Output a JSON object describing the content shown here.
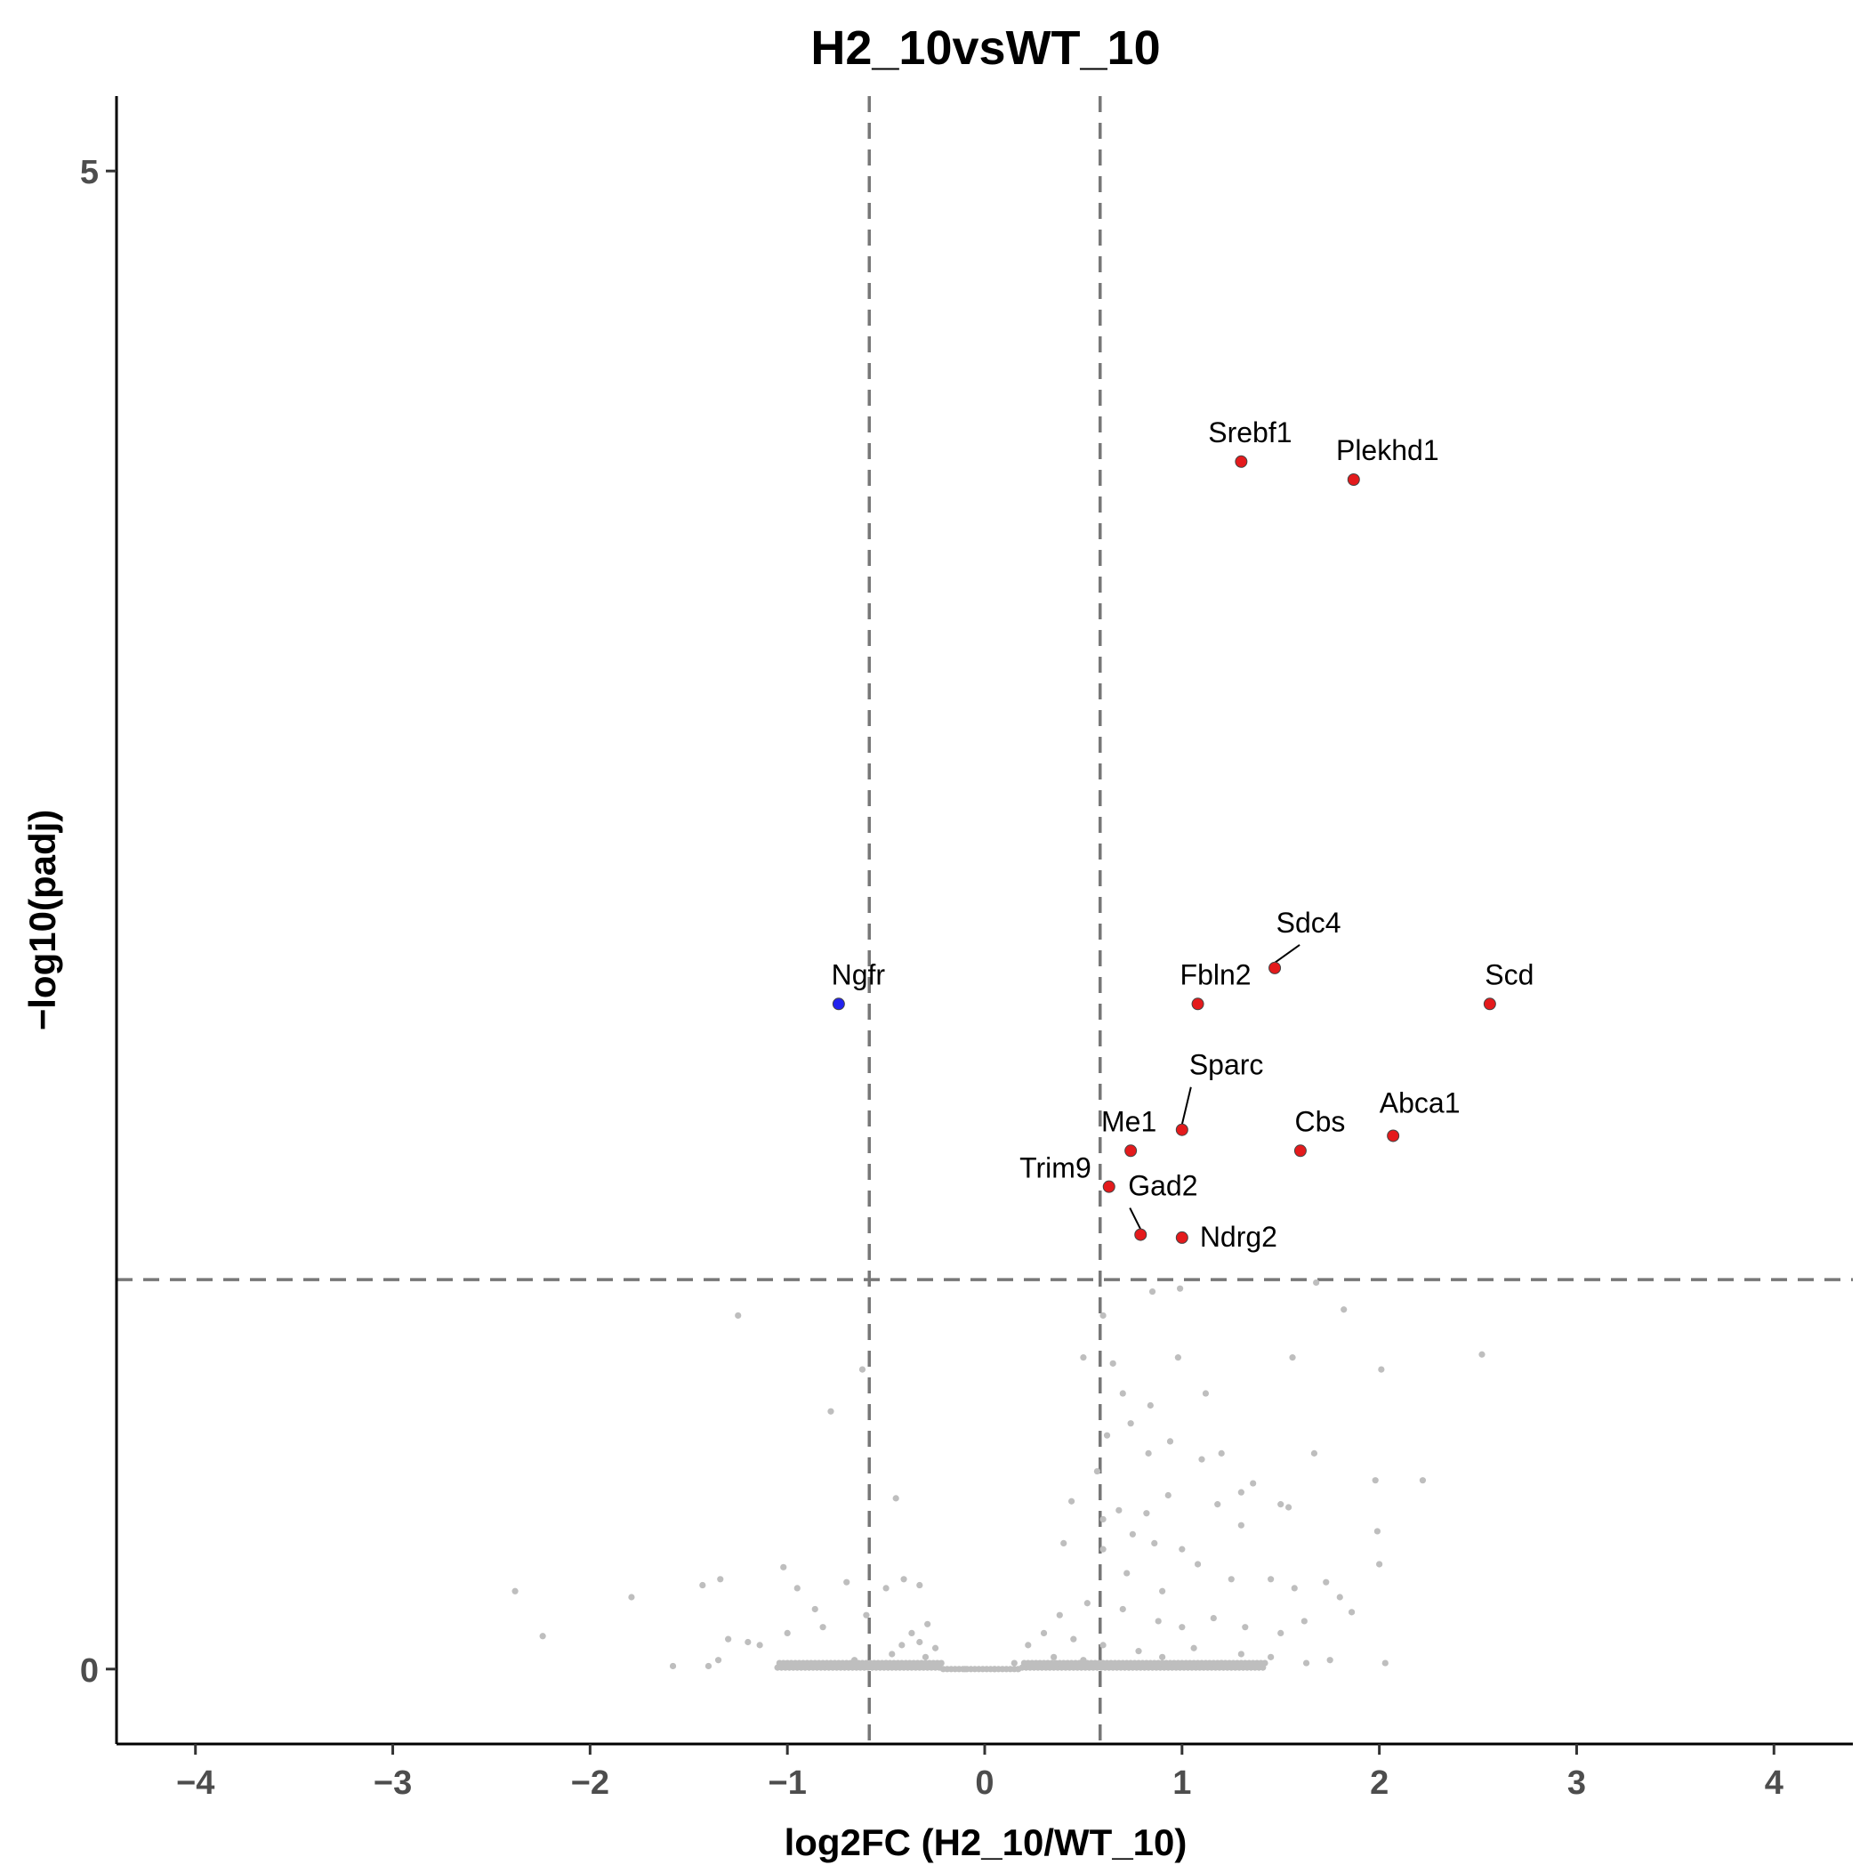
{
  "chart_data": {
    "type": "scatter",
    "title": "H2_10vsWT_10",
    "xlabel": "log2FC (H2_10/WT_10)",
    "ylabel": "−log10(padj)",
    "xlim": [
      -4.4,
      4.4
    ],
    "ylim": [
      -0.25,
      5.25
    ],
    "x_ticks": [
      {
        "value": -4,
        "label": "−4"
      },
      {
        "value": -3,
        "label": "−3"
      },
      {
        "value": -2,
        "label": "−2"
      },
      {
        "value": -1,
        "label": "−1"
      },
      {
        "value": 0,
        "label": "0"
      },
      {
        "value": 1,
        "label": "1"
      },
      {
        "value": 2,
        "label": "2"
      },
      {
        "value": 3,
        "label": "3"
      },
      {
        "value": 4,
        "label": "4"
      }
    ],
    "y_ticks": [
      {
        "value": 0,
        "label": "0"
      },
      {
        "value": 5,
        "label": "5"
      }
    ],
    "thresholds": {
      "log2fc": [
        -0.585,
        0.585
      ],
      "neg_log10_padj": 1.3
    },
    "grid": false,
    "legend": "none",
    "colors": {
      "up": "#e41a1c",
      "down": "#2222ee",
      "not_significant": "#bebebe",
      "threshold_line": "#777777"
    },
    "significant_genes": [
      {
        "gene": "Srebf1",
        "x": 1.3,
        "y": 4.03,
        "direction": "up"
      },
      {
        "gene": "Plekhd1",
        "x": 1.87,
        "y": 3.97,
        "direction": "up"
      },
      {
        "gene": "Sdc4",
        "x": 1.47,
        "y": 2.34,
        "direction": "up"
      },
      {
        "gene": "Ngfr",
        "x": -0.74,
        "y": 2.22,
        "direction": "down"
      },
      {
        "gene": "Fbln2",
        "x": 1.08,
        "y": 2.22,
        "direction": "up"
      },
      {
        "gene": "Scd",
        "x": 2.56,
        "y": 2.22,
        "direction": "up"
      },
      {
        "gene": "Sparc",
        "x": 1.0,
        "y": 1.8,
        "direction": "up"
      },
      {
        "gene": "Abca1",
        "x": 2.07,
        "y": 1.78,
        "direction": "up"
      },
      {
        "gene": "Me1",
        "x": 0.74,
        "y": 1.73,
        "direction": "up"
      },
      {
        "gene": "Cbs",
        "x": 1.6,
        "y": 1.73,
        "direction": "up"
      },
      {
        "gene": "Trim9",
        "x": 0.63,
        "y": 1.61,
        "direction": "up"
      },
      {
        "gene": "Gad2",
        "x": 0.79,
        "y": 1.45,
        "direction": "up"
      },
      {
        "gene": "Ndrg2",
        "x": 1.0,
        "y": 1.44,
        "direction": "up"
      }
    ],
    "nonsignificant_points": [
      [
        -1.25,
        1.18
      ],
      [
        -0.62,
        1.0
      ],
      [
        -0.78,
        0.86
      ],
      [
        -0.45,
        0.57
      ],
      [
        -1.02,
        0.34
      ],
      [
        -2.38,
        0.26
      ],
      [
        -1.79,
        0.24
      ],
      [
        -1.43,
        0.28
      ],
      [
        -1.34,
        0.3
      ],
      [
        -2.24,
        0.11
      ],
      [
        -1.58,
        0.01
      ],
      [
        -1.4,
        0.01
      ],
      [
        -1.35,
        0.03
      ],
      [
        -1.2,
        0.09
      ],
      [
        -1.3,
        0.1
      ],
      [
        -1.14,
        0.08
      ],
      [
        -1.0,
        0.12
      ],
      [
        -0.86,
        0.2
      ],
      [
        -0.95,
        0.27
      ],
      [
        -0.7,
        0.29
      ],
      [
        -0.82,
        0.14
      ],
      [
        -0.6,
        0.18
      ],
      [
        -0.5,
        0.27
      ],
      [
        -0.33,
        0.28
      ],
      [
        -0.41,
        0.3
      ],
      [
        -0.47,
        0.05
      ],
      [
        -0.42,
        0.08
      ],
      [
        -0.37,
        0.12
      ],
      [
        -0.33,
        0.09
      ],
      [
        -0.29,
        0.15
      ],
      [
        -0.25,
        0.07
      ],
      [
        -0.5,
        0.02
      ],
      [
        -0.66,
        0.03
      ],
      [
        -0.3,
        0.04
      ],
      [
        0.6,
        1.18
      ],
      [
        0.85,
        1.26
      ],
      [
        0.99,
        1.27
      ],
      [
        1.68,
        1.29
      ],
      [
        1.82,
        1.2
      ],
      [
        2.52,
        1.05
      ],
      [
        2.01,
        1.0
      ],
      [
        1.56,
        1.04
      ],
      [
        0.98,
        1.04
      ],
      [
        0.5,
        1.04
      ],
      [
        0.65,
        1.02
      ],
      [
        0.7,
        0.92
      ],
      [
        0.84,
        0.88
      ],
      [
        1.12,
        0.92
      ],
      [
        0.62,
        0.78
      ],
      [
        0.74,
        0.82
      ],
      [
        0.94,
        0.76
      ],
      [
        0.57,
        0.66
      ],
      [
        0.83,
        0.72
      ],
      [
        1.1,
        0.7
      ],
      [
        1.2,
        0.72
      ],
      [
        1.36,
        0.62
      ],
      [
        1.67,
        0.72
      ],
      [
        1.98,
        0.63
      ],
      [
        2.22,
        0.63
      ],
      [
        1.99,
        0.46
      ],
      [
        2.0,
        0.35
      ],
      [
        1.3,
        0.59
      ],
      [
        1.5,
        0.55
      ],
      [
        1.54,
        0.54
      ],
      [
        0.44,
        0.56
      ],
      [
        0.68,
        0.53
      ],
      [
        0.6,
        0.5
      ],
      [
        0.82,
        0.52
      ],
      [
        0.93,
        0.58
      ],
      [
        1.18,
        0.55
      ],
      [
        1.3,
        0.48
      ],
      [
        0.4,
        0.42
      ],
      [
        0.6,
        0.4
      ],
      [
        0.75,
        0.45
      ],
      [
        0.86,
        0.42
      ],
      [
        1.0,
        0.4
      ],
      [
        1.08,
        0.35
      ],
      [
        0.72,
        0.32
      ],
      [
        0.9,
        0.26
      ],
      [
        1.25,
        0.3
      ],
      [
        1.45,
        0.3
      ],
      [
        1.57,
        0.27
      ],
      [
        1.73,
        0.29
      ],
      [
        1.8,
        0.24
      ],
      [
        1.86,
        0.19
      ],
      [
        1.62,
        0.16
      ],
      [
        1.5,
        0.12
      ],
      [
        1.32,
        0.14
      ],
      [
        1.16,
        0.17
      ],
      [
        1.0,
        0.14
      ],
      [
        0.88,
        0.16
      ],
      [
        0.7,
        0.2
      ],
      [
        0.52,
        0.22
      ],
      [
        0.38,
        0.18
      ],
      [
        0.3,
        0.12
      ],
      [
        0.22,
        0.08
      ],
      [
        0.45,
        0.1
      ],
      [
        0.6,
        0.08
      ],
      [
        0.78,
        0.06
      ],
      [
        1.06,
        0.07
      ],
      [
        1.3,
        0.05
      ],
      [
        1.63,
        0.02
      ],
      [
        1.75,
        0.03
      ],
      [
        2.03,
        0.02
      ],
      [
        0.5,
        0.03
      ],
      [
        0.9,
        0.04
      ],
      [
        1.2,
        0.02
      ],
      [
        1.45,
        0.04
      ],
      [
        0.35,
        0.04
      ],
      [
        0.15,
        0.02
      ],
      [
        -0.1,
        0.0
      ],
      [
        0.05,
        0.0
      ]
    ]
  }
}
